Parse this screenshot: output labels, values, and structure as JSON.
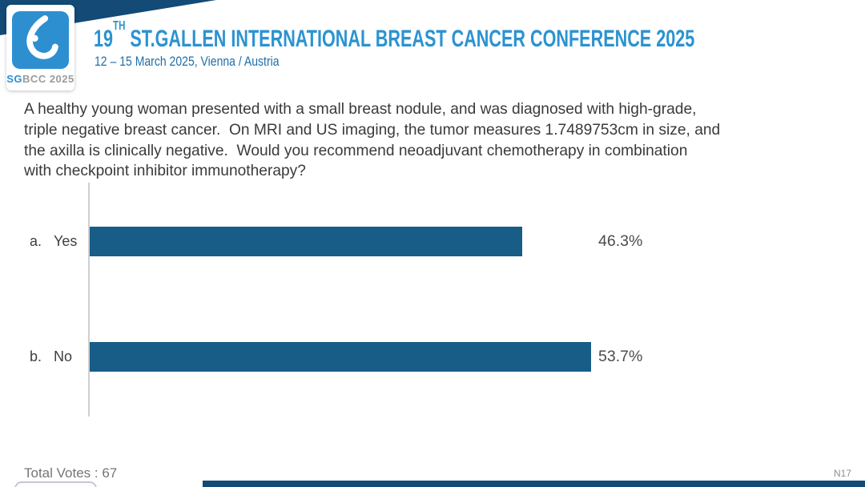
{
  "header": {
    "logo": {
      "text_sg": "SG",
      "text_rest": "BCC 2025"
    },
    "title_prefix": "19",
    "title_sup": "TH",
    "title_rest": " ST.GALLEN INTERNATIONAL BREAST CANCER CONFERENCE 2025",
    "subtitle": "12 – 15 March 2025, Vienna / Austria"
  },
  "question": {
    "lines": [
      "A healthy young woman presented with a small breast nodule, and was diagnosed with high-grade,",
      "triple negative breast cancer.  On MRI and US imaging, the tumor measures 1.7489753cm in size, and",
      "the axilla is clinically negative.  Would you recommend neoadjuvant chemotherapy in combination",
      "with checkpoint inhibitor immunotherapy?"
    ]
  },
  "chart": {
    "rows": [
      {
        "letter": "a.",
        "option": "Yes",
        "value": 46.3,
        "pct_label": "46.3%"
      },
      {
        "letter": "b.",
        "option": "No",
        "value": 53.7,
        "pct_label": "53.7%"
      }
    ]
  },
  "footer": {
    "total_votes_label": "Total Votes : 67",
    "slide_ref": "N17"
  },
  "colors": {
    "accent_blue": "#2b93d1",
    "navy": "#134a76",
    "subtitle_blue": "#1e6fa8",
    "bar_blue": "#175d87",
    "logo_blue": "#2e8fd0",
    "text_dark": "#3a3a3a",
    "text_gray": "#757575"
  },
  "chart_data": {
    "type": "bar",
    "orientation": "horizontal",
    "categories": [
      "a. Yes",
      "b. No"
    ],
    "values": [
      46.3,
      53.7
    ],
    "value_labels": [
      "46.3%",
      "53.7%"
    ],
    "total_votes": 67,
    "xlim": [
      0,
      100
    ],
    "grid": false,
    "legend": false,
    "bar_color": "#175d87",
    "title": "Would you recommend neoadjuvant chemotherapy in combination with checkpoint inhibitor immunotherapy?"
  }
}
